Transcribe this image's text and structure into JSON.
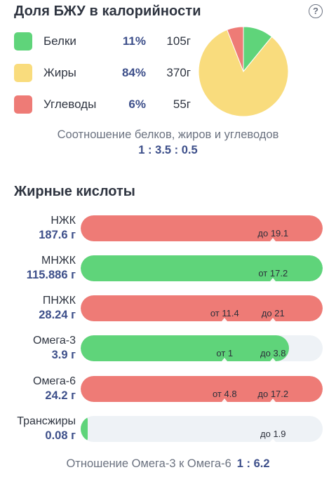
{
  "macros": {
    "title": "Доля БЖУ в калорийности",
    "help_glyph": "?",
    "items": [
      {
        "name": "Белки",
        "pct": "11%",
        "grams": "105г",
        "color": "#5fd47a"
      },
      {
        "name": "Жиры",
        "pct": "84%",
        "grams": "370г",
        "color": "#f9dc7d"
      },
      {
        "name": "Углеводы",
        "pct": "6%",
        "grams": "55г",
        "color": "#ee7b76"
      }
    ],
    "pie_share": [
      11,
      84,
      6
    ],
    "ratio_caption": "Соотношение белков, жиров и углеводов",
    "ratio_value": "1 : 3.5 : 0.5"
  },
  "fatty_acids": {
    "title": "Жирные кислоты",
    "items": [
      {
        "name": "НЖК",
        "value": "187.6 г",
        "status": "red",
        "fill_fraction": 1.0,
        "markers": [
          {
            "label": "до 19.1",
            "value": 19.1,
            "pos": 0.795
          }
        ]
      },
      {
        "name": "МНЖК",
        "value": "115.886 г",
        "status": "green",
        "fill_fraction": 1.0,
        "markers": [
          {
            "label": "от 17.2",
            "value": 17.2,
            "pos": 0.795
          }
        ]
      },
      {
        "name": "ПНЖК",
        "value": "28.24 г",
        "status": "red",
        "fill_fraction": 1.0,
        "markers": [
          {
            "label": "от 11.4",
            "value": 11.4,
            "pos": 0.595
          },
          {
            "label": "до 21",
            "value": 21,
            "pos": 0.795
          }
        ]
      },
      {
        "name": "Омега-3",
        "value": "3.9 г",
        "status": "green",
        "fill_fraction": 0.86,
        "markers": [
          {
            "label": "от 1",
            "value": 1,
            "pos": 0.595
          },
          {
            "label": "до 3.8",
            "value": 3.8,
            "pos": 0.795
          }
        ]
      },
      {
        "name": "Омега-6",
        "value": "24.2 г",
        "status": "red",
        "fill_fraction": 1.0,
        "markers": [
          {
            "label": "от 4.8",
            "value": 4.8,
            "pos": 0.595
          },
          {
            "label": "до 17.2",
            "value": 17.2,
            "pos": 0.795
          }
        ]
      },
      {
        "name": "Трансжиры",
        "value": "0.08 г",
        "status": "green",
        "fill_fraction": 0.03,
        "markers": [
          {
            "label": "до 1.9",
            "value": 1.9,
            "pos": 0.795
          }
        ]
      }
    ],
    "colors": {
      "red": "#ee7b76",
      "green": "#5fd47a",
      "track": "#eef2f6"
    }
  },
  "footer": {
    "label": "Отношение Омега-3 к Омега-6",
    "value": "1 : 6.2"
  }
}
